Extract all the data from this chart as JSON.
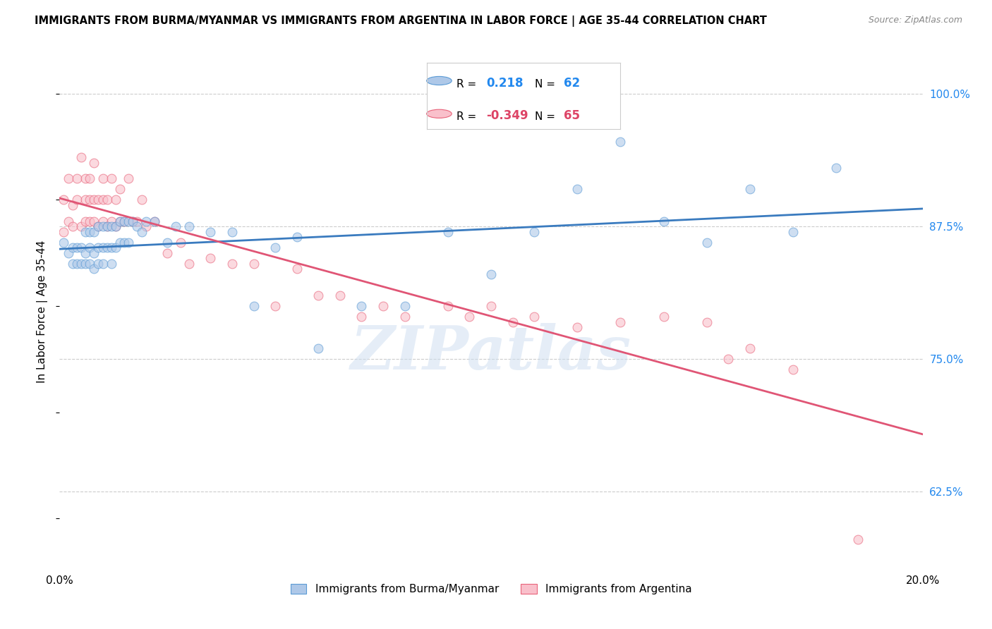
{
  "title": "IMMIGRANTS FROM BURMA/MYANMAR VS IMMIGRANTS FROM ARGENTINA IN LABOR FORCE | AGE 35-44 CORRELATION CHART",
  "source": "Source: ZipAtlas.com",
  "ylabel": "In Labor Force | Age 35-44",
  "xmin": 0.0,
  "xmax": 0.2,
  "ymin": 0.555,
  "ymax": 1.035,
  "yticks_right": [
    0.625,
    0.75,
    0.875,
    1.0
  ],
  "ytick_labels_right": [
    "62.5%",
    "75.0%",
    "87.5%",
    "100.0%"
  ],
  "legend_r_blue": "0.218",
  "legend_n_blue": "62",
  "legend_r_pink": "-0.349",
  "legend_n_pink": "65",
  "legend_label_blue": "Immigrants from Burma/Myanmar",
  "legend_label_pink": "Immigrants from Argentina",
  "blue_fill": "#aec8e8",
  "blue_edge": "#5b9bd5",
  "pink_fill": "#f9c0cb",
  "pink_edge": "#e8637a",
  "blue_line_color": "#3a7bbf",
  "pink_line_color": "#e05575",
  "scatter_alpha": 0.6,
  "scatter_size": 85,
  "watermark": "ZIPatlas",
  "blue_scatter_x": [
    0.001,
    0.002,
    0.003,
    0.003,
    0.004,
    0.004,
    0.005,
    0.005,
    0.006,
    0.006,
    0.006,
    0.007,
    0.007,
    0.007,
    0.008,
    0.008,
    0.008,
    0.009,
    0.009,
    0.009,
    0.01,
    0.01,
    0.01,
    0.011,
    0.011,
    0.012,
    0.012,
    0.012,
    0.013,
    0.013,
    0.014,
    0.014,
    0.015,
    0.015,
    0.016,
    0.016,
    0.017,
    0.018,
    0.019,
    0.02,
    0.022,
    0.025,
    0.027,
    0.03,
    0.035,
    0.04,
    0.045,
    0.05,
    0.055,
    0.06,
    0.07,
    0.08,
    0.09,
    0.1,
    0.11,
    0.12,
    0.13,
    0.14,
    0.15,
    0.16,
    0.17,
    0.18
  ],
  "blue_scatter_y": [
    0.86,
    0.85,
    0.855,
    0.84,
    0.855,
    0.84,
    0.855,
    0.84,
    0.87,
    0.85,
    0.84,
    0.87,
    0.855,
    0.84,
    0.87,
    0.85,
    0.835,
    0.875,
    0.855,
    0.84,
    0.875,
    0.855,
    0.84,
    0.875,
    0.855,
    0.875,
    0.855,
    0.84,
    0.875,
    0.855,
    0.88,
    0.86,
    0.88,
    0.86,
    0.88,
    0.86,
    0.88,
    0.875,
    0.87,
    0.88,
    0.88,
    0.86,
    0.875,
    0.875,
    0.87,
    0.87,
    0.8,
    0.855,
    0.865,
    0.76,
    0.8,
    0.8,
    0.87,
    0.83,
    0.87,
    0.91,
    0.955,
    0.88,
    0.86,
    0.91,
    0.87,
    0.93
  ],
  "pink_scatter_x": [
    0.001,
    0.001,
    0.002,
    0.002,
    0.003,
    0.003,
    0.004,
    0.004,
    0.005,
    0.005,
    0.006,
    0.006,
    0.006,
    0.007,
    0.007,
    0.007,
    0.008,
    0.008,
    0.008,
    0.009,
    0.009,
    0.01,
    0.01,
    0.01,
    0.011,
    0.011,
    0.012,
    0.012,
    0.013,
    0.013,
    0.014,
    0.014,
    0.015,
    0.016,
    0.017,
    0.018,
    0.019,
    0.02,
    0.022,
    0.025,
    0.028,
    0.03,
    0.035,
    0.04,
    0.045,
    0.05,
    0.055,
    0.06,
    0.065,
    0.07,
    0.075,
    0.08,
    0.09,
    0.095,
    0.1,
    0.105,
    0.11,
    0.12,
    0.13,
    0.14,
    0.15,
    0.155,
    0.16,
    0.17,
    0.185
  ],
  "pink_scatter_y": [
    0.87,
    0.9,
    0.88,
    0.92,
    0.875,
    0.895,
    0.9,
    0.92,
    0.875,
    0.94,
    0.88,
    0.92,
    0.9,
    0.88,
    0.92,
    0.9,
    0.88,
    0.935,
    0.9,
    0.875,
    0.9,
    0.88,
    0.92,
    0.9,
    0.875,
    0.9,
    0.88,
    0.92,
    0.875,
    0.9,
    0.88,
    0.91,
    0.88,
    0.92,
    0.88,
    0.88,
    0.9,
    0.875,
    0.88,
    0.85,
    0.86,
    0.84,
    0.845,
    0.84,
    0.84,
    0.8,
    0.835,
    0.81,
    0.81,
    0.79,
    0.8,
    0.79,
    0.8,
    0.79,
    0.8,
    0.785,
    0.79,
    0.78,
    0.785,
    0.79,
    0.785,
    0.75,
    0.76,
    0.74,
    0.58
  ]
}
